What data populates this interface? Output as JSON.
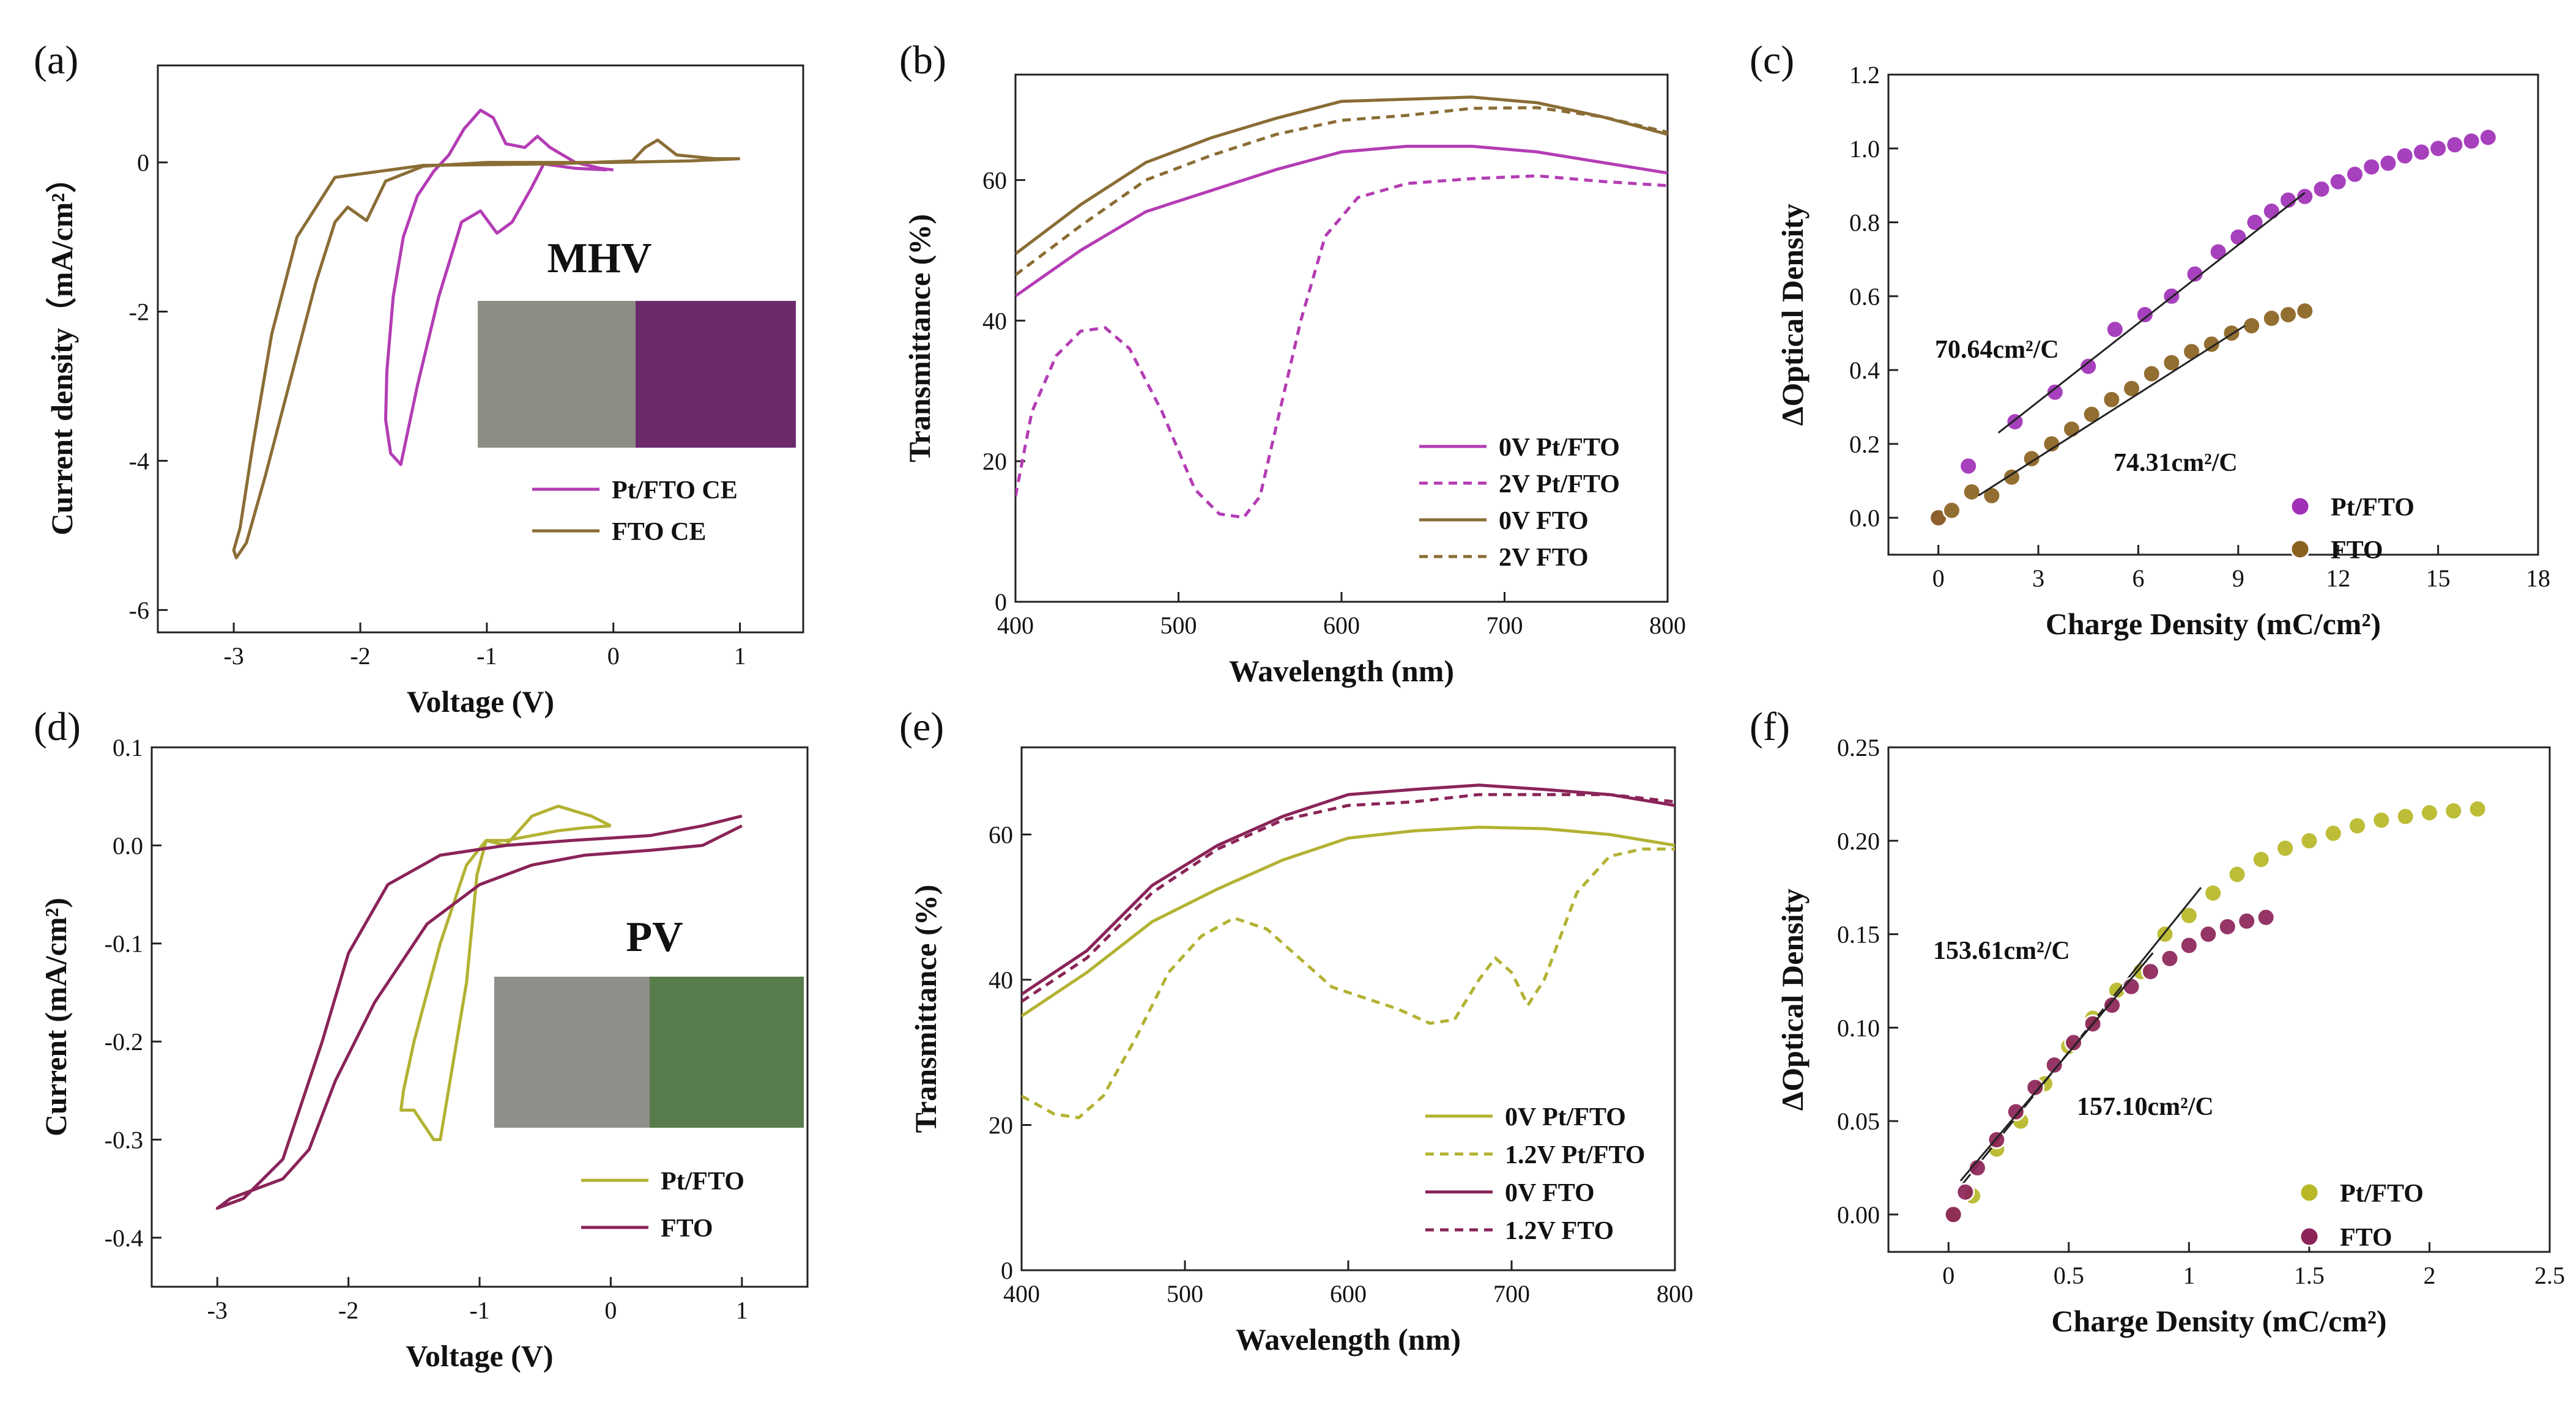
{
  "chart_data": [
    {
      "panel": "(a)",
      "type": "line",
      "xlabel": "Voltage (V)",
      "ylabel": "Current density（mA/cm²）",
      "xlim": [
        -3.6,
        1.5
      ],
      "ylim": [
        -6.3,
        1.3
      ],
      "xticks": [
        -3,
        -2,
        -1,
        0,
        1
      ],
      "yticks": [
        -6,
        -4,
        -2,
        0
      ],
      "annotation": "MHV",
      "swatch_colors": [
        "#8d8d85",
        "#6c2a6d"
      ],
      "legend": "bottom-right",
      "series": [
        {
          "name": "Pt/FTO CE",
          "color": "#b43cb4",
          "dash": "solid",
          "x": [
            -0.05,
            -0.3,
            -0.55,
            -0.65,
            -0.8,
            -0.92,
            -1.05,
            -1.2,
            -1.38,
            -1.55,
            -1.68,
            -1.76,
            -1.8,
            -1.79,
            -1.74,
            -1.66,
            -1.55,
            -1.42,
            -1.3,
            -1.18,
            -1.05,
            -0.95,
            -0.85,
            -0.7,
            -0.6,
            -0.5,
            -0.3,
            -0.1,
            0.0
          ],
          "y": [
            -0.1,
            -0.08,
            -0.02,
            -0.35,
            -0.8,
            -0.95,
            -0.65,
            -0.8,
            -1.8,
            -3.0,
            -4.05,
            -3.9,
            -3.45,
            -2.8,
            -1.8,
            -1.0,
            -0.45,
            -0.12,
            0.1,
            0.45,
            0.7,
            0.6,
            0.25,
            0.2,
            0.35,
            0.2,
            0.0,
            -0.08,
            -0.1
          ]
        },
        {
          "name": "FTO CE",
          "color": "#8a6d35",
          "dash": "solid",
          "x": [
            1.0,
            0.8,
            0.5,
            0.35,
            0.25,
            0.15,
            -0.5,
            -1.5,
            -2.2,
            -2.5,
            -2.7,
            -2.85,
            -2.95,
            -3.0,
            -2.98,
            -2.9,
            -2.75,
            -2.55,
            -2.35,
            -2.2,
            -2.1,
            -1.95,
            -1.8,
            -1.5,
            -1.0,
            0.0,
            0.6,
            1.0
          ],
          "y": [
            0.05,
            0.05,
            0.1,
            0.3,
            0.2,
            0.02,
            -0.02,
            -0.04,
            -0.2,
            -1.0,
            -2.3,
            -3.8,
            -4.9,
            -5.2,
            -5.3,
            -5.1,
            -4.2,
            -2.9,
            -1.6,
            -0.8,
            -0.6,
            -0.78,
            -0.25,
            -0.05,
            0.0,
            0.0,
            0.02,
            0.05
          ]
        }
      ]
    },
    {
      "panel": "(b)",
      "type": "line",
      "xlabel": "Wavelength (nm)",
      "ylabel": "Transmittance (%)",
      "xlim": [
        400,
        800
      ],
      "ylim": [
        0,
        75
      ],
      "xticks": [
        400,
        500,
        600,
        700,
        800
      ],
      "yticks": [
        0,
        20,
        40,
        60
      ],
      "legend": "bottom-right",
      "series": [
        {
          "name": "0V Pt/FTO",
          "color": "#b43cb4",
          "dash": "solid",
          "x": [
            400,
            440,
            480,
            520,
            560,
            600,
            640,
            680,
            720,
            760,
            800
          ],
          "y": [
            43.5,
            50,
            55.5,
            58.5,
            61.5,
            64,
            64.8,
            64.8,
            64,
            62.5,
            61
          ]
        },
        {
          "name": "2V Pt/FTO",
          "color": "#b43cb4",
          "dash": "dashed",
          "x": [
            400,
            410,
            425,
            440,
            455,
            470,
            490,
            510,
            525,
            540,
            550,
            560,
            575,
            590,
            610,
            640,
            680,
            720,
            760,
            800
          ],
          "y": [
            15,
            27,
            35,
            38.5,
            39,
            36,
            27,
            16,
            12.5,
            12,
            15,
            25,
            40,
            52,
            57.5,
            59.5,
            60.2,
            60.6,
            59.8,
            59.2
          ]
        },
        {
          "name": "0V FTO",
          "color": "#8a6d35",
          "dash": "solid",
          "x": [
            400,
            440,
            480,
            520,
            560,
            600,
            640,
            680,
            720,
            760,
            800
          ],
          "y": [
            49.5,
            56.5,
            62.5,
            66,
            68.8,
            71.2,
            71.5,
            71.8,
            71,
            69,
            66.5
          ]
        },
        {
          "name": "2V FTO",
          "color": "#8a6d35",
          "dash": "dashed",
          "x": [
            400,
            440,
            480,
            520,
            560,
            600,
            640,
            680,
            720,
            760,
            800
          ],
          "y": [
            46.5,
            53.5,
            60,
            63.5,
            66.5,
            68.5,
            69.2,
            70.2,
            70.3,
            69,
            66.8
          ]
        }
      ]
    },
    {
      "panel": "(c)",
      "type": "scatter",
      "xlabel": "Charge Density (mC/cm²)",
      "ylabel": "ΔOptical Density",
      "xlim": [
        -1.5,
        18
      ],
      "ylim": [
        -0.1,
        1.2
      ],
      "xticks": [
        0,
        3,
        6,
        9,
        12,
        15,
        18
      ],
      "yticks": [
        0.0,
        0.2,
        0.4,
        0.6,
        0.8,
        1.0,
        1.2
      ],
      "legend": "bottom-right",
      "annotations": [
        "70.64cm²/C",
        "74.31cm²/C"
      ],
      "series": [
        {
          "name": "Pt/FTO",
          "color": "#a030b8",
          "x": [
            0,
            0.9,
            2.3,
            3.5,
            4.5,
            5.3,
            6.2,
            7,
            7.7,
            8.4,
            9,
            9.5,
            10,
            10.5,
            11,
            11.5,
            12,
            12.5,
            13,
            13.5,
            14,
            14.5,
            15,
            15.5,
            16,
            16.5
          ],
          "y": [
            0,
            0.14,
            0.26,
            0.34,
            0.41,
            0.51,
            0.55,
            0.6,
            0.66,
            0.72,
            0.76,
            0.8,
            0.83,
            0.86,
            0.87,
            0.89,
            0.91,
            0.93,
            0.95,
            0.96,
            0.98,
            0.99,
            1.0,
            1.01,
            1.02,
            1.03
          ],
          "fit": {
            "x": [
              1.8,
              11
            ],
            "y": [
              0.23,
              0.88
            ]
          }
        },
        {
          "name": "FTO",
          "color": "#8a6220",
          "x": [
            0,
            0.4,
            1,
            1.6,
            2.2,
            2.8,
            3.4,
            4,
            4.6,
            5.2,
            5.8,
            6.4,
            7,
            7.6,
            8.2,
            8.8,
            9.4,
            10,
            10.5,
            11
          ],
          "y": [
            0,
            0.02,
            0.07,
            0.06,
            0.11,
            0.16,
            0.2,
            0.24,
            0.28,
            0.32,
            0.35,
            0.39,
            0.42,
            0.45,
            0.47,
            0.5,
            0.52,
            0.54,
            0.55,
            0.56
          ],
          "fit": {
            "x": [
              1.2,
              9.2
            ],
            "y": [
              0.06,
              0.52
            ]
          }
        }
      ]
    },
    {
      "panel": "(d)",
      "type": "line",
      "xlabel": "Voltage (V)",
      "ylabel": "Current (mA/cm²)",
      "xlim": [
        -3.5,
        1.5
      ],
      "ylim": [
        -0.45,
        0.1
      ],
      "xticks": [
        -3,
        -2,
        -1,
        0,
        1
      ],
      "yticks": [
        -0.4,
        -0.3,
        -0.2,
        -0.1,
        0.0,
        0.1
      ],
      "annotation": "PV",
      "swatch_colors": [
        "#8e8f88",
        "#587c4c"
      ],
      "legend": "bottom-right",
      "series": [
        {
          "name": "Pt/FTO",
          "color": "#b2b232",
          "dash": "solid",
          "x": [
            0.0,
            -0.15,
            -0.4,
            -0.6,
            -0.8,
            -0.95,
            -1.02,
            -1.1,
            -1.2,
            -1.3,
            -1.35,
            -1.5,
            -1.6,
            -1.58,
            -1.5,
            -1.3,
            -1.1,
            -0.95,
            -0.8,
            -0.6,
            -0.4,
            -0.2,
            0.0
          ],
          "y": [
            0.02,
            0.03,
            0.04,
            0.03,
            0.0,
            0.005,
            -0.03,
            -0.14,
            -0.22,
            -0.3,
            -0.3,
            -0.27,
            -0.27,
            -0.25,
            -0.2,
            -0.1,
            -0.02,
            0.005,
            0.005,
            0.01,
            0.015,
            0.018,
            0.02
          ]
        },
        {
          "name": "FTO",
          "color": "#8a2458",
          "dash": "solid",
          "x": [
            1.0,
            0.7,
            0.3,
            -0.2,
            -0.6,
            -1.0,
            -1.4,
            -1.8,
            -2.1,
            -2.3,
            -2.5,
            -2.7,
            -2.9,
            -3.0,
            -2.8,
            -2.5,
            -2.2,
            -2.0,
            -1.7,
            -1.3,
            -0.8,
            -0.3,
            0.3,
            0.7,
            1.0
          ],
          "y": [
            0.02,
            0.0,
            -0.005,
            -0.01,
            -0.02,
            -0.04,
            -0.08,
            -0.16,
            -0.24,
            -0.31,
            -0.34,
            -0.35,
            -0.36,
            -0.37,
            -0.36,
            -0.32,
            -0.2,
            -0.11,
            -0.04,
            -0.01,
            0.0,
            0.005,
            0.01,
            0.02,
            0.03
          ]
        }
      ]
    },
    {
      "panel": "(e)",
      "type": "line",
      "xlabel": "Wavelength (nm)",
      "ylabel": "Transmittance (%)",
      "xlim": [
        400,
        800
      ],
      "ylim": [
        0,
        72
      ],
      "xticks": [
        400,
        500,
        600,
        700,
        800
      ],
      "yticks": [
        0,
        20,
        40,
        60
      ],
      "legend": "bottom-right",
      "series": [
        {
          "name": "0V Pt/FTO",
          "color": "#b2b232",
          "dash": "solid",
          "x": [
            400,
            440,
            480,
            520,
            560,
            600,
            640,
            680,
            720,
            760,
            800
          ],
          "y": [
            35,
            41,
            48,
            52.5,
            56.5,
            59.5,
            60.5,
            61,
            60.8,
            60,
            58.5
          ]
        },
        {
          "name": "1.2V Pt/FTO",
          "color": "#b2b232",
          "dash": "dashed",
          "x": [
            400,
            420,
            435,
            450,
            470,
            490,
            510,
            530,
            550,
            570,
            590,
            610,
            630,
            650,
            665,
            680,
            690,
            700,
            710,
            720,
            740,
            760,
            780,
            800
          ],
          "y": [
            24,
            21.5,
            21,
            24,
            32,
            41,
            46,
            48.5,
            47,
            43,
            39,
            37.5,
            36,
            34,
            34.5,
            40,
            43,
            41,
            36.5,
            40,
            52,
            57,
            58,
            58
          ]
        },
        {
          "name": "0V FTO",
          "color": "#8a2458",
          "dash": "solid",
          "x": [
            400,
            440,
            480,
            520,
            560,
            600,
            640,
            680,
            720,
            760,
            800
          ],
          "y": [
            38,
            44,
            53,
            58.5,
            62.5,
            65.5,
            66.2,
            66.8,
            66.2,
            65.5,
            64
          ]
        },
        {
          "name": "1.2V FTO",
          "color": "#8a2458",
          "dash": "dashed",
          "x": [
            400,
            440,
            480,
            520,
            560,
            600,
            640,
            680,
            720,
            760,
            800
          ],
          "y": [
            37,
            43,
            52,
            58,
            62,
            64,
            64.5,
            65.5,
            65.5,
            65.5,
            64.5
          ]
        }
      ]
    },
    {
      "panel": "(f)",
      "type": "scatter",
      "xlabel": "Charge Density (mC/cm²)",
      "ylabel": "ΔOptical Density",
      "xlim": [
        -0.25,
        2.5
      ],
      "ylim": [
        -0.02,
        0.25
      ],
      "xticks": [
        0.0,
        0.5,
        1.0,
        1.5,
        2.0,
        2.5
      ],
      "yticks": [
        0.0,
        0.05,
        0.1,
        0.15,
        0.2,
        0.25
      ],
      "legend": "bottom-right",
      "annotations": [
        "153.61cm²/C",
        "157.10cm²/C"
      ],
      "series": [
        {
          "name": "Pt/FTO",
          "color": "#b8b828",
          "x": [
            0.02,
            0.1,
            0.2,
            0.3,
            0.4,
            0.5,
            0.6,
            0.7,
            0.8,
            0.9,
            1.0,
            1.1,
            1.2,
            1.3,
            1.4,
            1.5,
            1.6,
            1.7,
            1.8,
            1.9,
            2.0,
            2.1,
            2.2
          ],
          "y": [
            0.0,
            0.01,
            0.035,
            0.05,
            0.07,
            0.09,
            0.105,
            0.12,
            0.13,
            0.15,
            0.16,
            0.172,
            0.182,
            0.19,
            0.196,
            0.2,
            0.204,
            0.208,
            0.211,
            0.213,
            0.215,
            0.216,
            0.217
          ],
          "fit": {
            "x": [
              0.05,
              1.05
            ],
            "y": [
              0.015,
              0.175
            ]
          }
        },
        {
          "name": "FTO",
          "color": "#8c2458",
          "x": [
            0.02,
            0.07,
            0.12,
            0.2,
            0.28,
            0.36,
            0.44,
            0.52,
            0.6,
            0.68,
            0.76,
            0.84,
            0.92,
            1.0,
            1.08,
            1.16,
            1.24,
            1.32
          ],
          "y": [
            0.0,
            0.012,
            0.025,
            0.04,
            0.055,
            0.068,
            0.08,
            0.092,
            0.102,
            0.112,
            0.122,
            0.13,
            0.137,
            0.144,
            0.15,
            0.154,
            0.157,
            0.159
          ],
          "fit": {
            "x": [
              0.05,
              0.85
            ],
            "y": [
              0.018,
              0.14
            ]
          }
        }
      ]
    }
  ]
}
